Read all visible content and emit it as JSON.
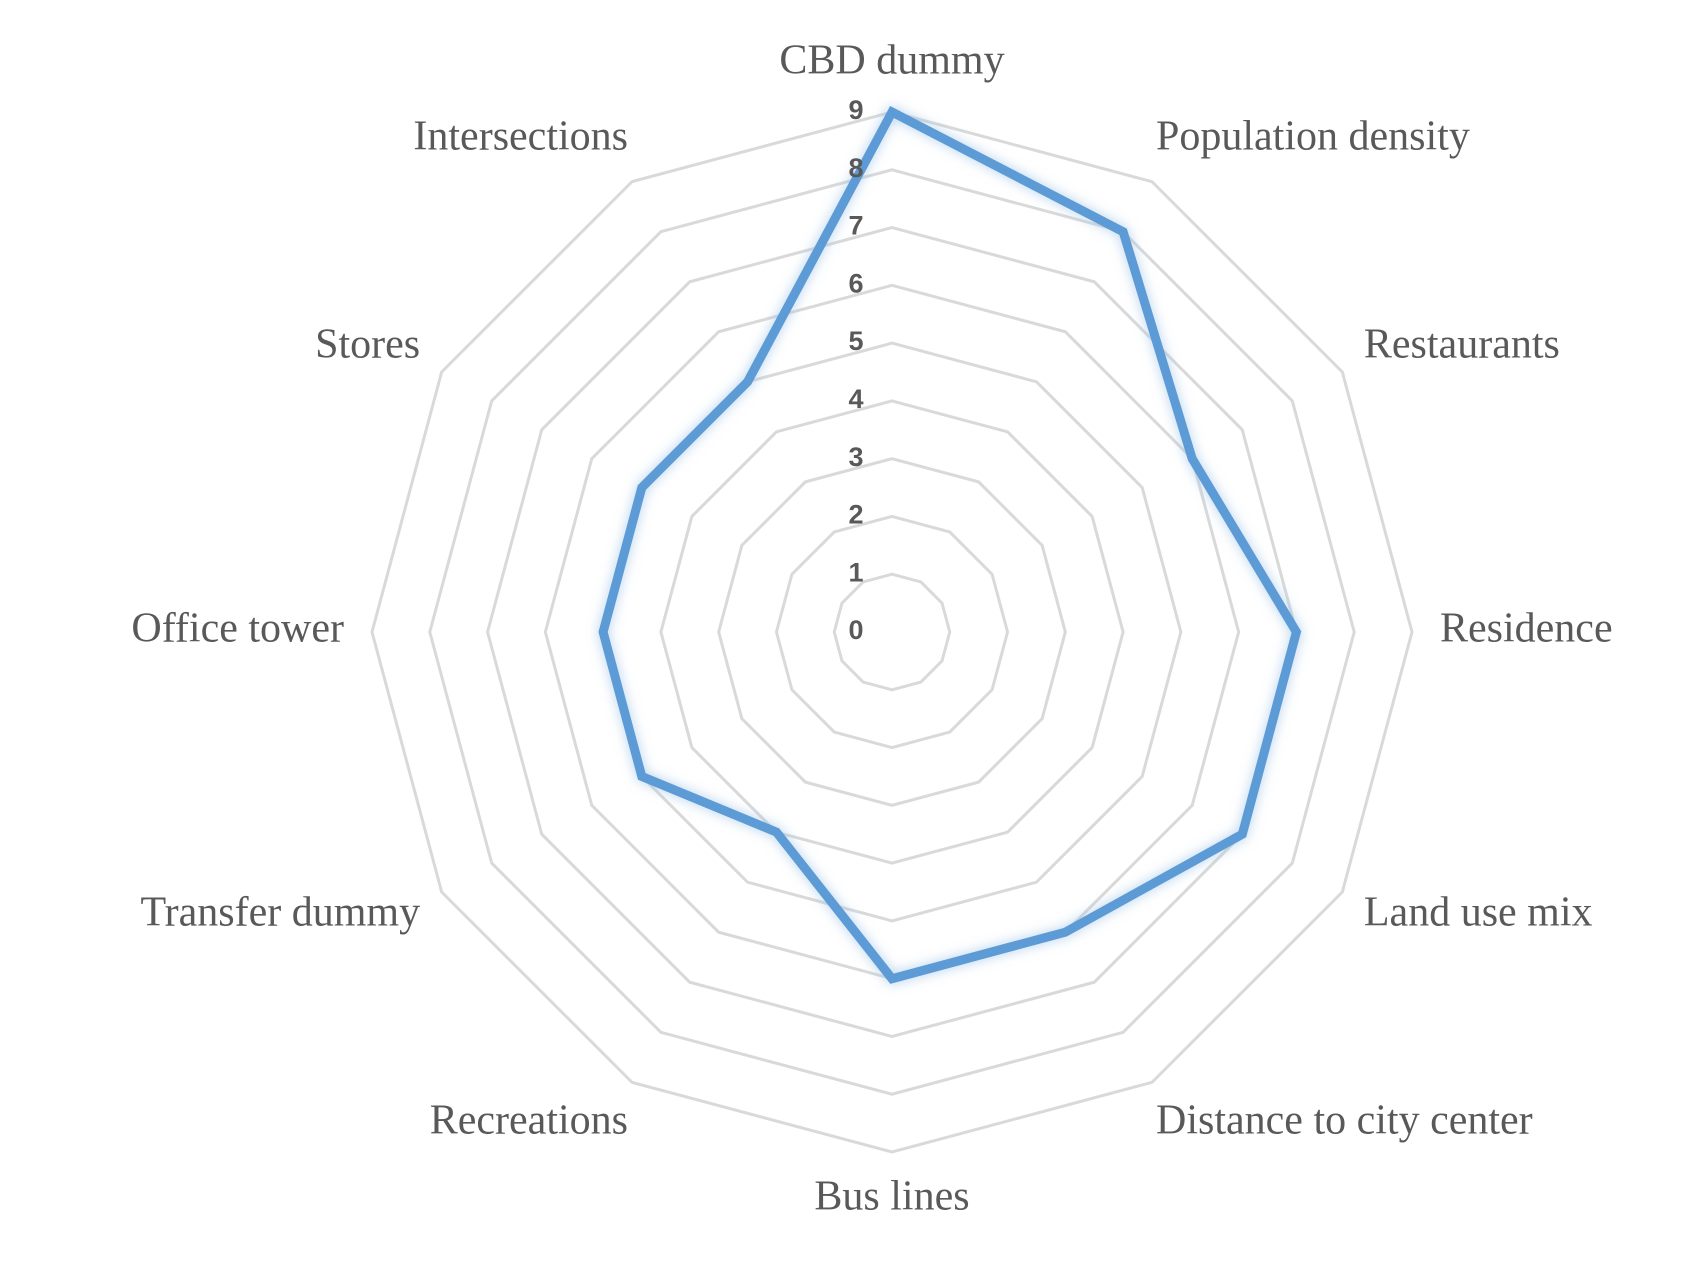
{
  "chart_data": {
    "type": "radar",
    "categories": [
      "CBD dummy",
      "Population density",
      "Restaurants",
      "Residence",
      "Land use mix",
      "Distance to city center",
      "Bus lines",
      "Recreations",
      "Transfer dummy",
      "Office tower",
      "Stores",
      "Intersections"
    ],
    "values": [
      9,
      8,
      6,
      7,
      7,
      6,
      6,
      4,
      5,
      5,
      5,
      5
    ],
    "color": "#5b9bd5",
    "ylim": [
      0,
      9
    ],
    "yticks": [
      0,
      1,
      2,
      3,
      4,
      5,
      6,
      7,
      8,
      9
    ],
    "grid": true
  }
}
